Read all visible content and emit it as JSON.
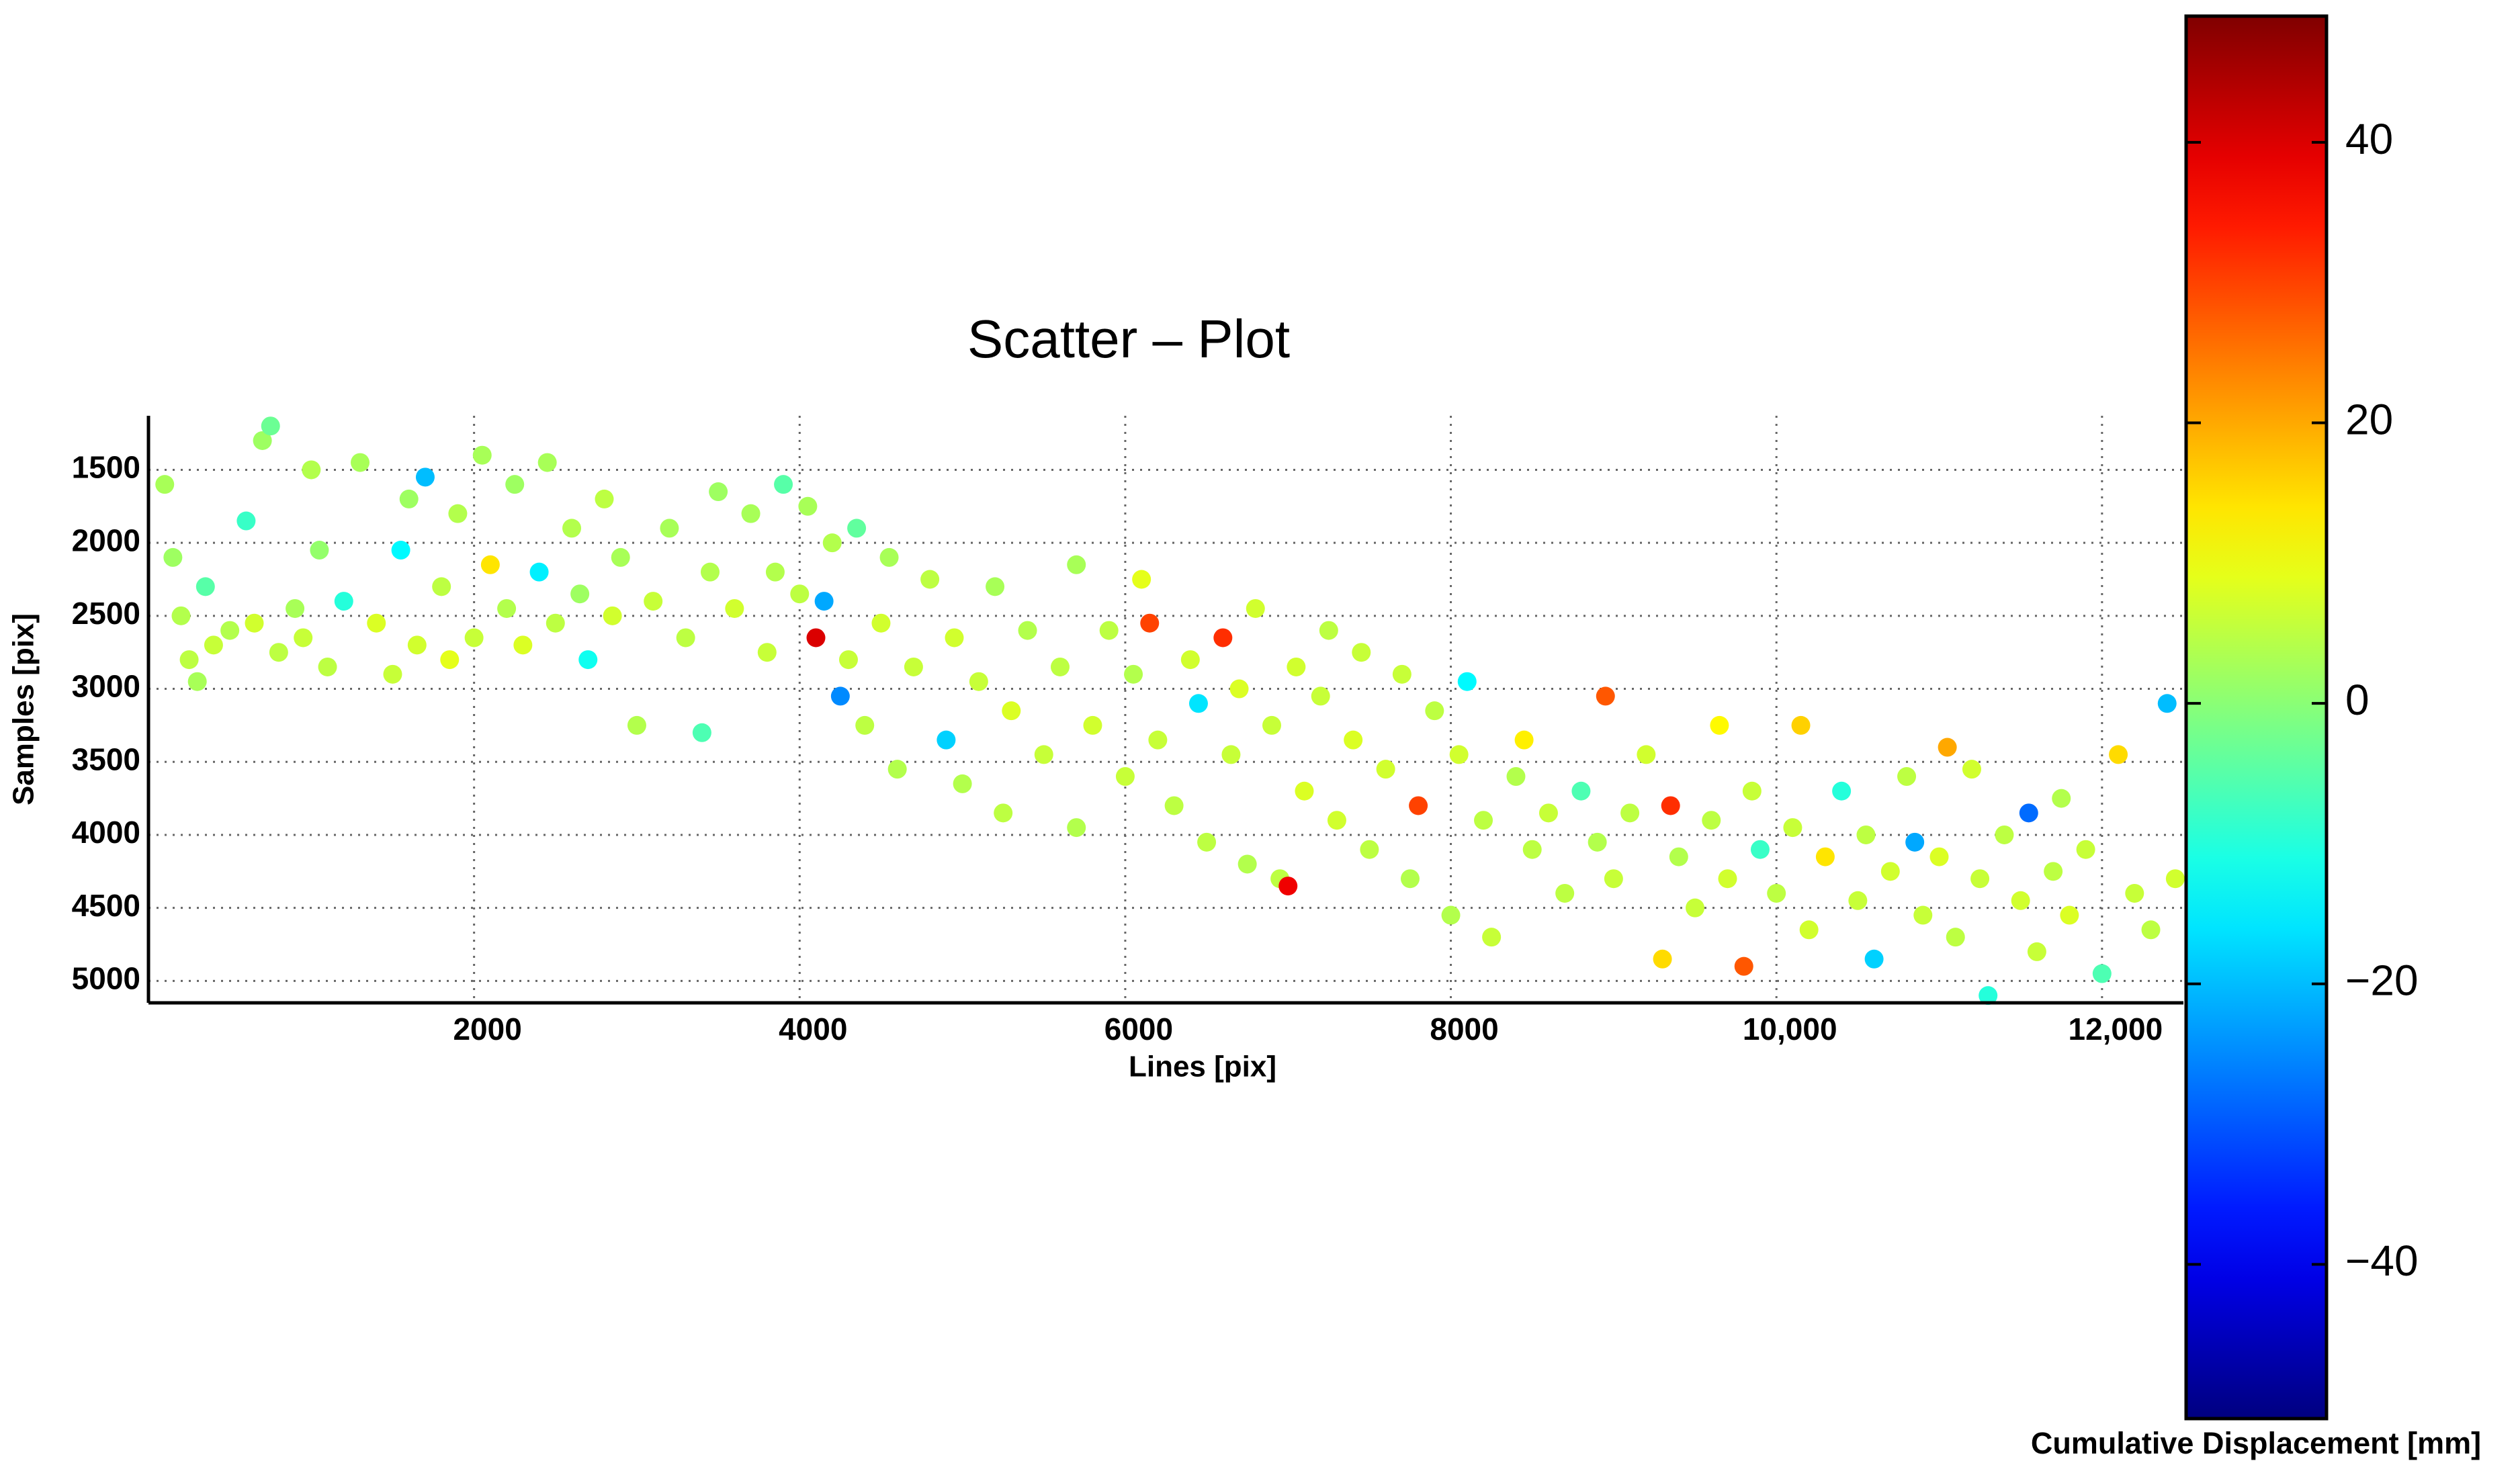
{
  "chart_data": {
    "type": "scatter",
    "title": "Scatter – Plot",
    "x_label": "Lines [pix]",
    "y_label": "Samples [pix]",
    "xlim": [
      0,
      12500
    ],
    "ylim": [
      5150,
      1130
    ],
    "xticks": [
      2000,
      4000,
      6000,
      8000,
      {
        "value": 10000,
        "label": "10,000"
      },
      {
        "value": 12000,
        "label": "12,000"
      }
    ],
    "yticks": [
      1500,
      2000,
      2500,
      3000,
      3500,
      4000,
      4500,
      5000
    ],
    "grid": true,
    "colormap": "jet",
    "colorbar_label": "Cumulative Displacement [mm]",
    "clim": [
      -51,
      49
    ],
    "colorbar_ticks": [
      {
        "value": -40,
        "label": "−40"
      },
      {
        "value": -20,
        "label": "−20"
      },
      0,
      20,
      40
    ],
    "x": [
      100,
      150,
      200,
      250,
      300,
      350,
      400,
      500,
      600,
      650,
      700,
      750,
      800,
      900,
      950,
      1000,
      1050,
      1100,
      1200,
      1300,
      1400,
      1500,
      1550,
      1600,
      1650,
      1700,
      1800,
      1850,
      1900,
      2000,
      2050,
      2100,
      2200,
      2250,
      2300,
      2400,
      2450,
      2500,
      2600,
      2650,
      2700,
      2800,
      2850,
      2900,
      3000,
      3100,
      3200,
      3300,
      3400,
      3450,
      3500,
      3600,
      3700,
      3800,
      3850,
      3900,
      4000,
      4050,
      4100,
      4150,
      4200,
      4250,
      4300,
      4350,
      4400,
      4500,
      4550,
      4600,
      4700,
      4800,
      4900,
      4950,
      5000,
      5100,
      5200,
      5250,
      5300,
      5400,
      5500,
      5600,
      5700,
      5700,
      5800,
      5900,
      6000,
      6050,
      6100,
      6150,
      6200,
      6300,
      6400,
      6450,
      6500,
      6600,
      6650,
      6700,
      6750,
      6800,
      6900,
      6950,
      7000,
      7050,
      7100,
      7200,
      7250,
      7300,
      7400,
      7450,
      7500,
      7600,
      7700,
      7750,
      7800,
      7900,
      8000,
      8050,
      8100,
      8200,
      8250,
      8400,
      8450,
      8500,
      8600,
      8700,
      8800,
      8900,
      8950,
      9000,
      9100,
      9200,
      9300,
      9350,
      9400,
      9500,
      9600,
      9650,
      9700,
      9800,
      9850,
      9900,
      10000,
      10100,
      10150,
      10200,
      10300,
      10400,
      10500,
      10550,
      10600,
      10700,
      10800,
      10850,
      10900,
      11000,
      11050,
      11100,
      11200,
      11250,
      11300,
      11400,
      11500,
      11550,
      11600,
      11700,
      11750,
      11800,
      11900,
      12000,
      12100,
      12200,
      12300,
      12400,
      12450
    ],
    "y": [
      1600,
      2100,
      2500,
      2800,
      2950,
      2300,
      2700,
      2600,
      1850,
      2550,
      1300,
      1200,
      2750,
      2450,
      2650,
      1500,
      2050,
      2850,
      2400,
      1450,
      2550,
      2900,
      2050,
      1700,
      2700,
      1550,
      2300,
      2800,
      1800,
      2650,
      1400,
      2150,
      2450,
      1600,
      2700,
      2200,
      1450,
      2550,
      1900,
      2350,
      2800,
      1700,
      2500,
      2100,
      3250,
      2400,
      1900,
      2650,
      3300,
      2200,
      1650,
      2450,
      1800,
      2750,
      2200,
      1600,
      2350,
      1750,
      2650,
      2400,
      2000,
      3050,
      2800,
      1900,
      3250,
      2550,
      2100,
      3550,
      2850,
      2250,
      3350,
      2650,
      3650,
      2950,
      2300,
      3850,
      3150,
      2600,
      3450,
      2850,
      2150,
      3950,
      3250,
      2600,
      3600,
      2900,
      2250,
      2550,
      3350,
      3800,
      2800,
      3100,
      4050,
      2650,
      3450,
      3000,
      4200,
      2450,
      3250,
      4300,
      4350,
      2850,
      3700,
      3050,
      2600,
      3900,
      3350,
      2750,
      4100,
      3550,
      2900,
      4300,
      3800,
      3150,
      4550,
      3450,
      2950,
      3900,
      4700,
      3600,
      3350,
      4100,
      3850,
      4400,
      3700,
      4050,
      3050,
      4300,
      3850,
      3450,
      4850,
      3800,
      4150,
      4500,
      3900,
      3250,
      4300,
      4900,
      3700,
      4100,
      4400,
      3950,
      3250,
      4650,
      4150,
      3700,
      4450,
      4000,
      4850,
      4250,
      3600,
      4050,
      4550,
      4150,
      3400,
      4700,
      3550,
      4300,
      5100,
      4000,
      4450,
      3850,
      4800,
      4250,
      3750,
      4550,
      4100,
      4950,
      3450,
      4400,
      4650,
      3100,
      4300
    ],
    "color_values": [
      3,
      2,
      4,
      5,
      3,
      -5,
      6,
      4,
      -8,
      7,
      2,
      -3,
      5,
      3,
      6,
      4,
      1,
      5,
      -10,
      3,
      8,
      6,
      -14,
      2,
      7,
      -20,
      5,
      9,
      4,
      6,
      3,
      14,
      4,
      2,
      8,
      -15,
      3,
      5,
      4,
      2,
      -12,
      5,
      7,
      3,
      4,
      6,
      3,
      5,
      -6,
      4,
      2,
      7,
      3,
      6,
      4,
      -5,
      5,
      3,
      40,
      -22,
      4,
      -25,
      6,
      -4,
      5,
      7,
      3,
      4,
      6,
      5,
      -18,
      7,
      4,
      6,
      3,
      5,
      8,
      4,
      6,
      5,
      3,
      4,
      7,
      5,
      6,
      4,
      9,
      30,
      6,
      5,
      7,
      -16,
      5,
      32,
      6,
      8,
      4,
      7,
      6,
      5,
      38,
      7,
      8,
      6,
      5,
      7,
      8,
      6,
      5,
      7,
      6,
      4,
      30,
      5,
      4,
      7,
      -14,
      5,
      6,
      4,
      13,
      5,
      6,
      5,
      -6,
      4,
      28,
      6,
      5,
      7,
      15,
      32,
      4,
      6,
      5,
      12,
      7,
      28,
      6,
      -8,
      5,
      6,
      16,
      7,
      14,
      -10,
      6,
      5,
      -18,
      7,
      5,
      -22,
      6,
      8,
      20,
      5,
      7,
      6,
      -10,
      5,
      7,
      -28,
      6,
      5,
      4,
      8,
      6,
      -6,
      15,
      6,
      5,
      -20,
      7
    ]
  }
}
